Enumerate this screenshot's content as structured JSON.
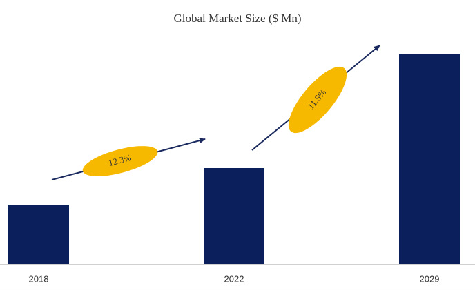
{
  "chart_data": {
    "type": "bar",
    "title": "Global Market Size ($ Mn)",
    "categories": [
      "2018",
      "2022",
      "2029"
    ],
    "values": [
      87,
      140,
      306
    ],
    "color": "#0b1f5c",
    "ylim": [
      0,
      320
    ],
    "annotations": [
      "12.3%",
      "11.5%"
    ],
    "annotation_color": "#f7b900",
    "arrow_color": "#1a2a5e"
  }
}
